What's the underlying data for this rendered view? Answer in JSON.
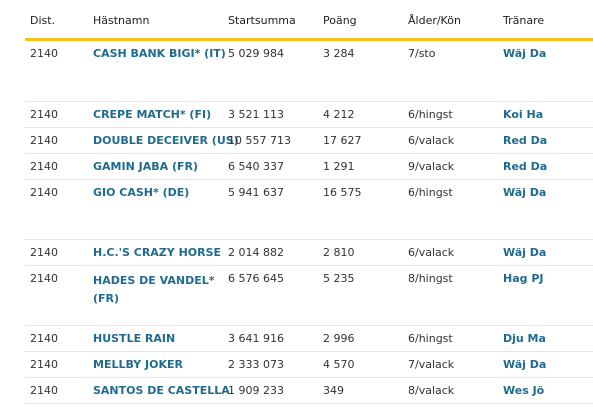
{
  "columns": [
    "Dist.",
    "Hästnamn",
    "Startsumma",
    "Poäng",
    "Ålder/Kön",
    "Tränare"
  ],
  "rows": [
    {
      "dist": "2140",
      "name": "CASH BANK BIGI* (IT)",
      "sum": "5 029 984",
      "points": "3 284",
      "age": "7/sto",
      "trainer": "Wäj Da"
    },
    {
      "dist": "2140",
      "name": "CREPE MATCH* (FI)",
      "sum": "3 521 113",
      "points": "4 212",
      "age": "6/hingst",
      "trainer": "Koi Ha"
    },
    {
      "dist": "2140",
      "name": "DOUBLE DECEIVER (US)",
      "sum": "10 557 713",
      "points": "17 627",
      "age": "6/valack",
      "trainer": "Red Da"
    },
    {
      "dist": "2140",
      "name": "GAMIN JABA (FR)",
      "sum": "6 540 337",
      "points": "1 291",
      "age": "9/valack",
      "trainer": "Red Da"
    },
    {
      "dist": "2140",
      "name": "GIO CASH* (DE)",
      "sum": "5 941 637",
      "points": "16 575",
      "age": "6/hingst",
      "trainer": "Wäj Da"
    },
    {
      "dist": "2140",
      "name": "H.C.'S CRAZY HORSE",
      "sum": "2 014 882",
      "points": "2 810",
      "age": "6/valack",
      "trainer": "Wäj Da"
    },
    {
      "dist": "2140",
      "name": "HADES DE VANDEL*",
      "name_line2": "(FR)",
      "sum": "6 576 645",
      "points": "5 235",
      "age": "8/hingst",
      "trainer": "Hag PJ"
    },
    {
      "dist": "2140",
      "name": "HUSTLE RAIN",
      "sum": "3 641 916",
      "points": "2 996",
      "age": "6/hingst",
      "trainer": "Dju Ma"
    },
    {
      "dist": "2140",
      "name": "MELLBY JOKER",
      "sum": "2 333 073",
      "points": "4 570",
      "age": "7/valack",
      "trainer": "Wäj Da"
    },
    {
      "dist": "2140",
      "name": "SANTOS DE CASTELLA",
      "sum": "1 909 233",
      "points": "349",
      "age": "8/valack",
      "trainer": "Wes Jö"
    }
  ]
}
